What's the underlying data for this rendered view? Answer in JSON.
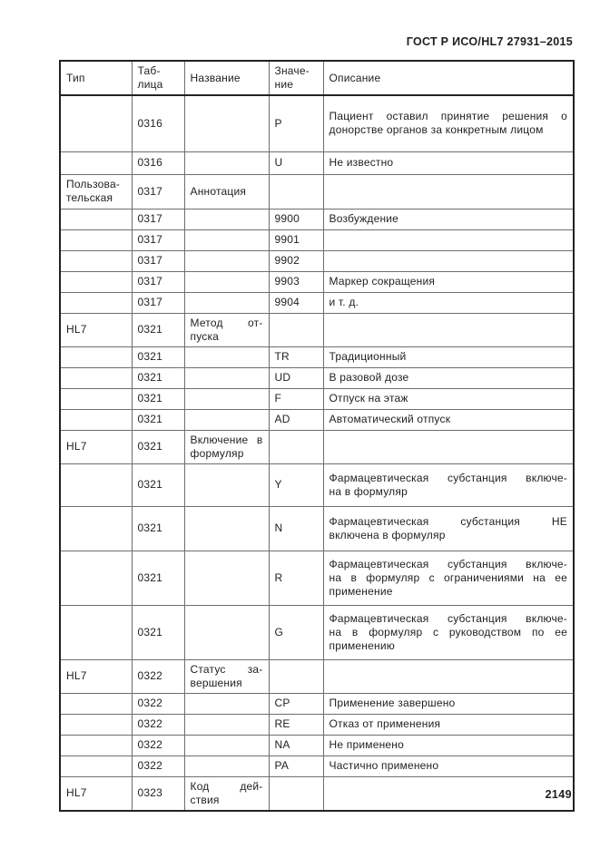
{
  "page": {
    "header_title": "ГОСТ Р ИСО/HL7 27931–2015",
    "page_number": "2149"
  },
  "table": {
    "columns": [
      "Тип",
      "Таб-\nлица",
      "Название",
      "Значе-\nние",
      "Описание"
    ],
    "rows": [
      {
        "t": "",
        "tab": "0316",
        "n": "",
        "v": "P",
        "d": "Пациент оставил принятие решения о\nдонорстве органов за конкретным лицом"
      },
      {
        "t": "",
        "tab": "0316",
        "n": "",
        "v": "U",
        "d": "Не известно"
      },
      {
        "t": "Пользова-\nтельская",
        "tab": "0317",
        "n": "Аннотация",
        "v": "",
        "d": ""
      },
      {
        "t": "",
        "tab": "0317",
        "n": "",
        "v": "9900",
        "d": "Возбуждение"
      },
      {
        "t": "",
        "tab": "0317",
        "n": "",
        "v": "9901",
        "d": ""
      },
      {
        "t": "",
        "tab": "0317",
        "n": "",
        "v": "9902",
        "d": ""
      },
      {
        "t": "",
        "tab": "0317",
        "n": "",
        "v": "9903",
        "d": "Маркер сокращения"
      },
      {
        "t": "",
        "tab": "0317",
        "n": "",
        "v": "9904",
        "d": "и т. д."
      },
      {
        "t": "HL7",
        "tab": "0321",
        "n": "Метод от-\nпуска",
        "v": "",
        "d": ""
      },
      {
        "t": "",
        "tab": "0321",
        "n": "",
        "v": "TR",
        "d": "Традиционный"
      },
      {
        "t": "",
        "tab": "0321",
        "n": "",
        "v": "UD",
        "d": "В разовой дозе"
      },
      {
        "t": "",
        "tab": "0321",
        "n": "",
        "v": "F",
        "d": "Отпуск на этаж"
      },
      {
        "t": "",
        "tab": "0321",
        "n": "",
        "v": "AD",
        "d": "Автоматический отпуск"
      },
      {
        "t": "HL7",
        "tab": "0321",
        "n": "Включение в\nформуляр",
        "v": "",
        "d": ""
      },
      {
        "t": "",
        "tab": "0321",
        "n": "",
        "v": "Y",
        "d": "Фармацевтическая субстанция включе-\nна в формуляр"
      },
      {
        "t": "",
        "tab": "0321",
        "n": "",
        "v": "N",
        "d": "Фармацевтическая субстанция НЕ\nвключена в формуляр"
      },
      {
        "t": "",
        "tab": "0321",
        "n": "",
        "v": "R",
        "d": "Фармацевтическая субстанция включе-\nна в формуляр с ограничениями на ее\nприменение"
      },
      {
        "t": "",
        "tab": "0321",
        "n": "",
        "v": "G",
        "d": "Фармацевтическая субстанция включе-\nна в формуляр с руководством по ее\nприменению"
      },
      {
        "t": "HL7",
        "tab": "0322",
        "n": "Статус за-\nвершения",
        "v": "",
        "d": ""
      },
      {
        "t": "",
        "tab": "0322",
        "n": "",
        "v": "CP",
        "d": "Применение завершено"
      },
      {
        "t": "",
        "tab": "0322",
        "n": "",
        "v": "RE",
        "d": "Отказ от применения"
      },
      {
        "t": "",
        "tab": "0322",
        "n": "",
        "v": "NA",
        "d": "Не применено"
      },
      {
        "t": "",
        "tab": "0322",
        "n": "",
        "v": "PA",
        "d": "Частично применено"
      },
      {
        "t": "HL7",
        "tab": "0323",
        "n": "Код дей-\nствия",
        "v": "",
        "d": ""
      }
    ]
  }
}
